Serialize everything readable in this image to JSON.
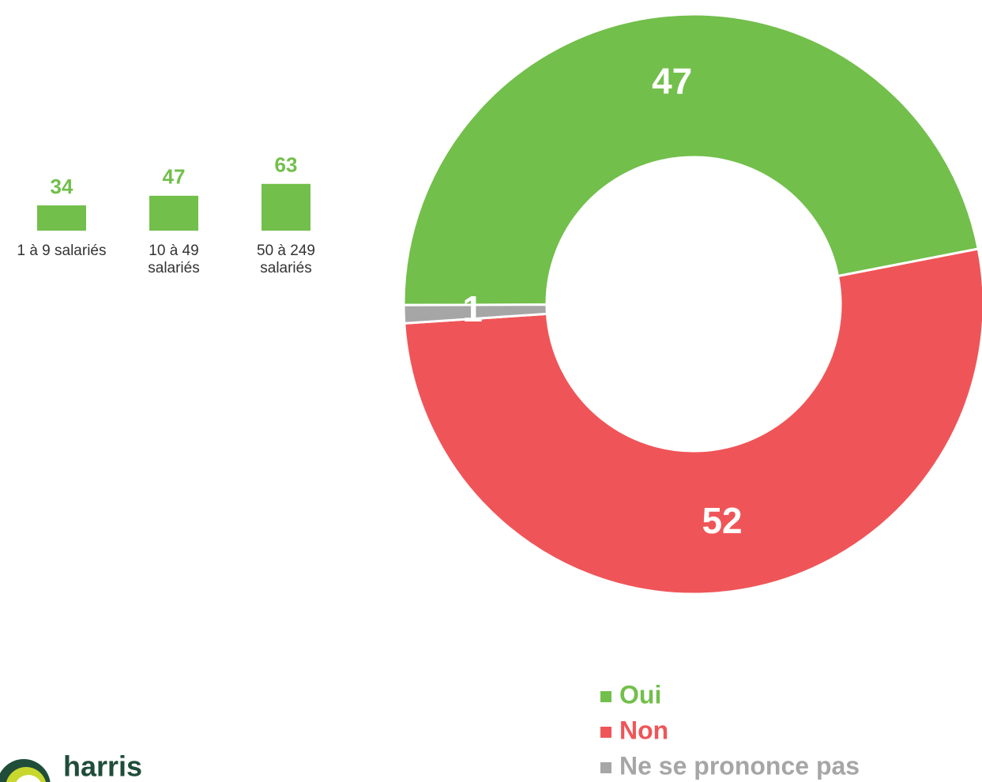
{
  "chart_data": [
    {
      "type": "bar",
      "categories": [
        "1 à 9 salariés",
        "10 à 49 salariés",
        "50 à 249 salariés"
      ],
      "values": [
        34,
        47,
        63
      ],
      "color": "#72bf4b"
    },
    {
      "type": "donut",
      "categories": [
        "Oui",
        "Non",
        "Ne se prononce pas"
      ],
      "values": [
        47,
        52,
        1
      ],
      "colors": [
        "#72bf4b",
        "#ef5558",
        "#a6a6a6"
      ],
      "legend": "bottom-right"
    }
  ],
  "logo": "harris"
}
